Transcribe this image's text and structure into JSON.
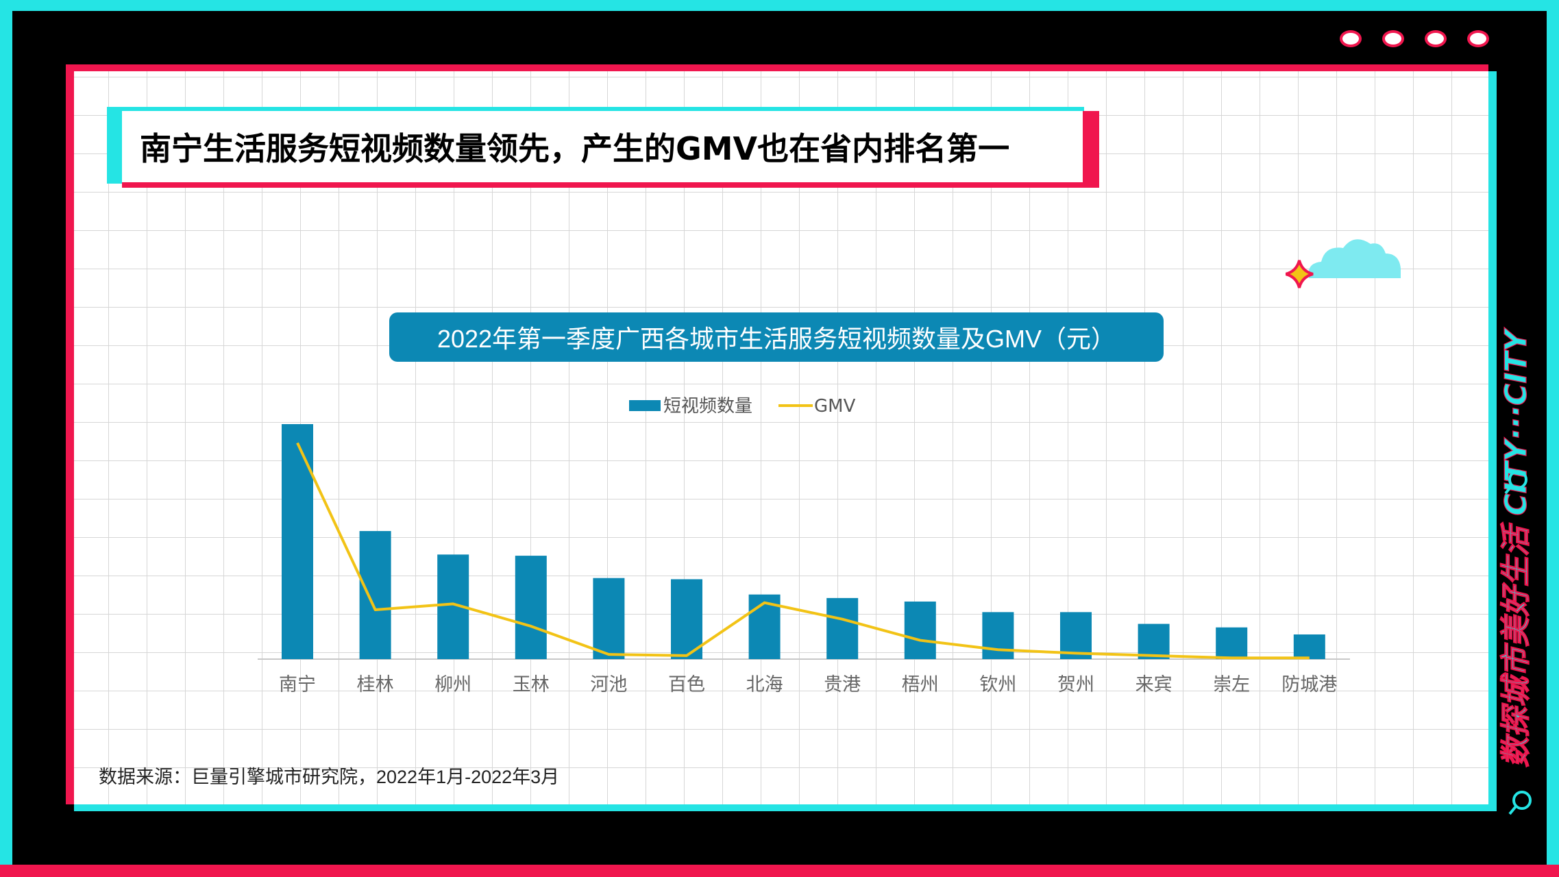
{
  "page": {
    "title": "南宁生活服务短视频数量领先，产生的GMV也在省内排名第一",
    "source": "数据来源：巨量引擎城市研究院，2022年1月-2022年3月",
    "side_label": "数探城市美好生活   CITY···CITY"
  },
  "colors": {
    "cyan": "#25e4e4",
    "red": "#f0164e",
    "bar": "#0c88b4",
    "line": "#f2c316"
  },
  "chart_data": {
    "type": "bar",
    "title": "2022年第一季度广西各城市生活服务短视频数量及GMV（元）",
    "categories": [
      "南宁",
      "桂林",
      "柳州",
      "玉林",
      "河池",
      "百色",
      "北海",
      "贵港",
      "梧州",
      "钦州",
      "贺州",
      "来宾",
      "崇左",
      "防城港"
    ],
    "series": [
      {
        "name": "短视频数量",
        "kind": "bar",
        "values": [
          100,
          54.5,
          44.5,
          44,
          34.5,
          34,
          27.5,
          26,
          24.5,
          20,
          20,
          15,
          13.5,
          10.5
        ]
      },
      {
        "name": "GMV",
        "kind": "line",
        "values": [
          92,
          21,
          23.5,
          14,
          2,
          1.5,
          24,
          17,
          8,
          4,
          2.5,
          1.5,
          0.5,
          0.5
        ]
      }
    ],
    "legend": [
      "短视频数量",
      "GMV"
    ],
    "legend_position": "top",
    "ylim": [
      0,
      100
    ],
    "xlabel": "",
    "ylabel": "",
    "grid": false
  }
}
